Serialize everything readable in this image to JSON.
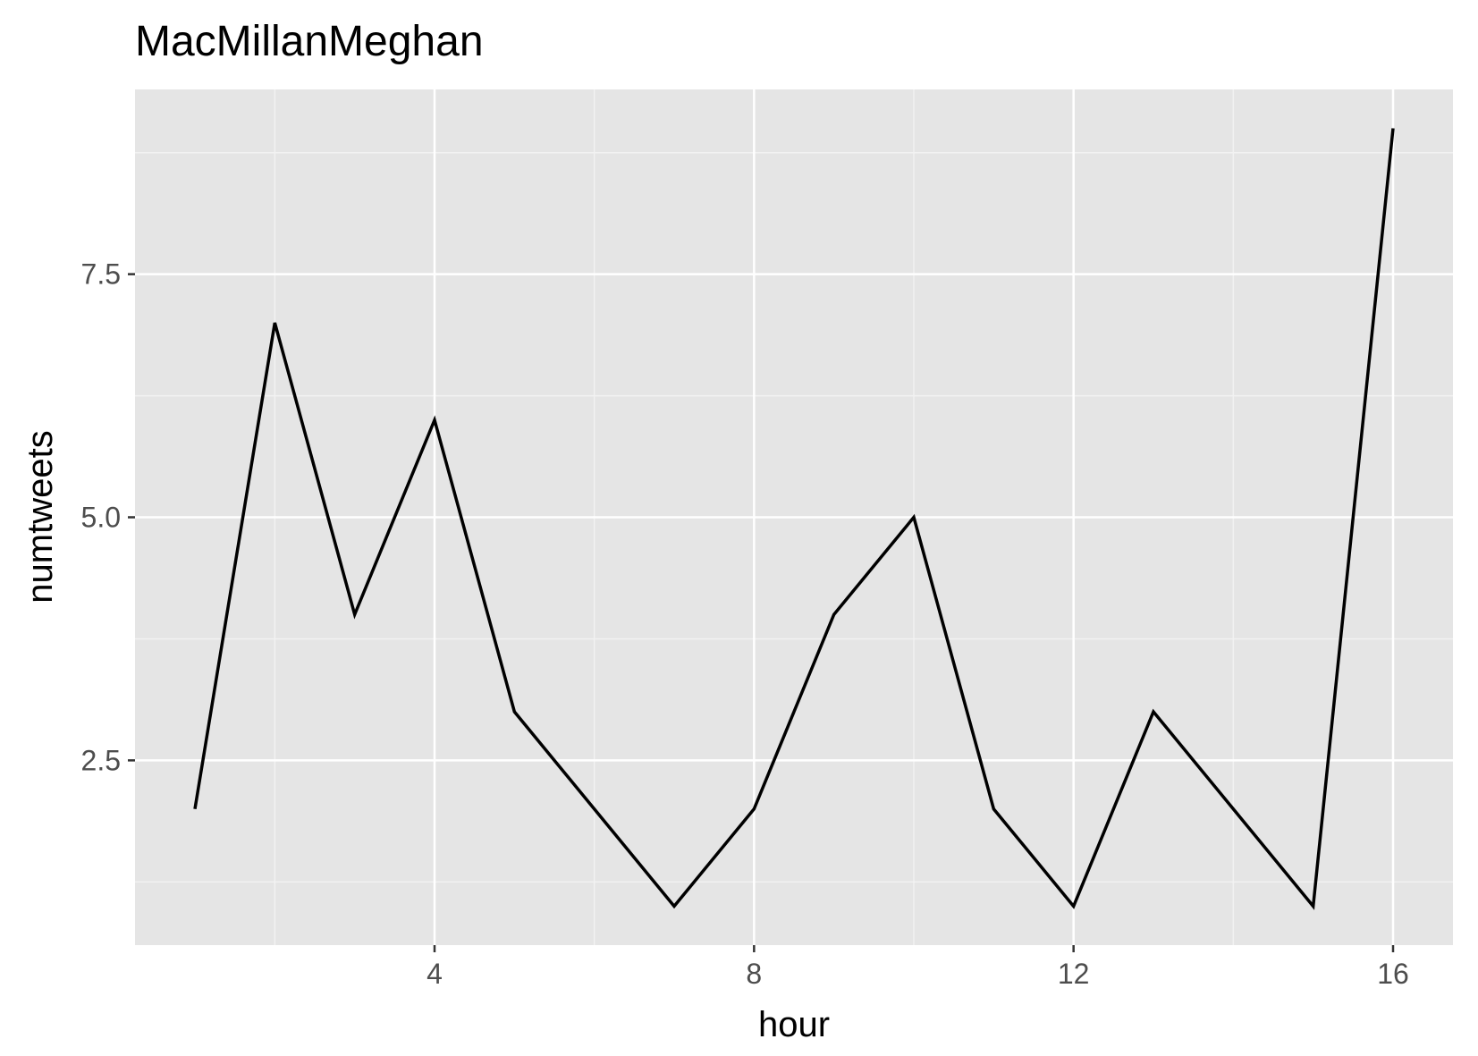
{
  "chart_data": {
    "type": "line",
    "title": "MacMillanMeghan",
    "xlabel": "hour",
    "ylabel": "numtweets",
    "x": [
      1,
      2,
      3,
      4,
      5,
      6,
      7,
      8,
      9,
      10,
      11,
      12,
      13,
      14,
      15,
      16
    ],
    "series": [
      {
        "values": [
          2,
          7,
          4,
          6,
          3,
          2,
          1,
          2,
          4,
          5,
          2,
          1,
          3,
          2,
          1,
          9
        ]
      }
    ],
    "xlim": [
      0.25,
      16.75
    ],
    "ylim": [
      0.6,
      9.4
    ],
    "x_ticks": [
      4,
      8,
      12,
      16
    ],
    "x_tick_labels": [
      "4",
      "8",
      "12",
      "16"
    ],
    "x_minor_ticks": [
      2,
      6,
      10,
      14
    ],
    "y_ticks": [
      2.5,
      5.0,
      7.5
    ],
    "y_tick_labels": [
      "2.5",
      "5.0",
      "7.5"
    ],
    "y_minor_ticks": [
      1.25,
      3.75,
      6.25,
      8.75
    ],
    "grid": true,
    "legend": "none",
    "colors": {
      "panel_background": "#e5e5e5",
      "grid_major": "#ffffff",
      "grid_minor": "#f2f2f2",
      "line": "#000000",
      "tick_text": "#4d4d4d",
      "tick_mark": "#333333"
    }
  }
}
